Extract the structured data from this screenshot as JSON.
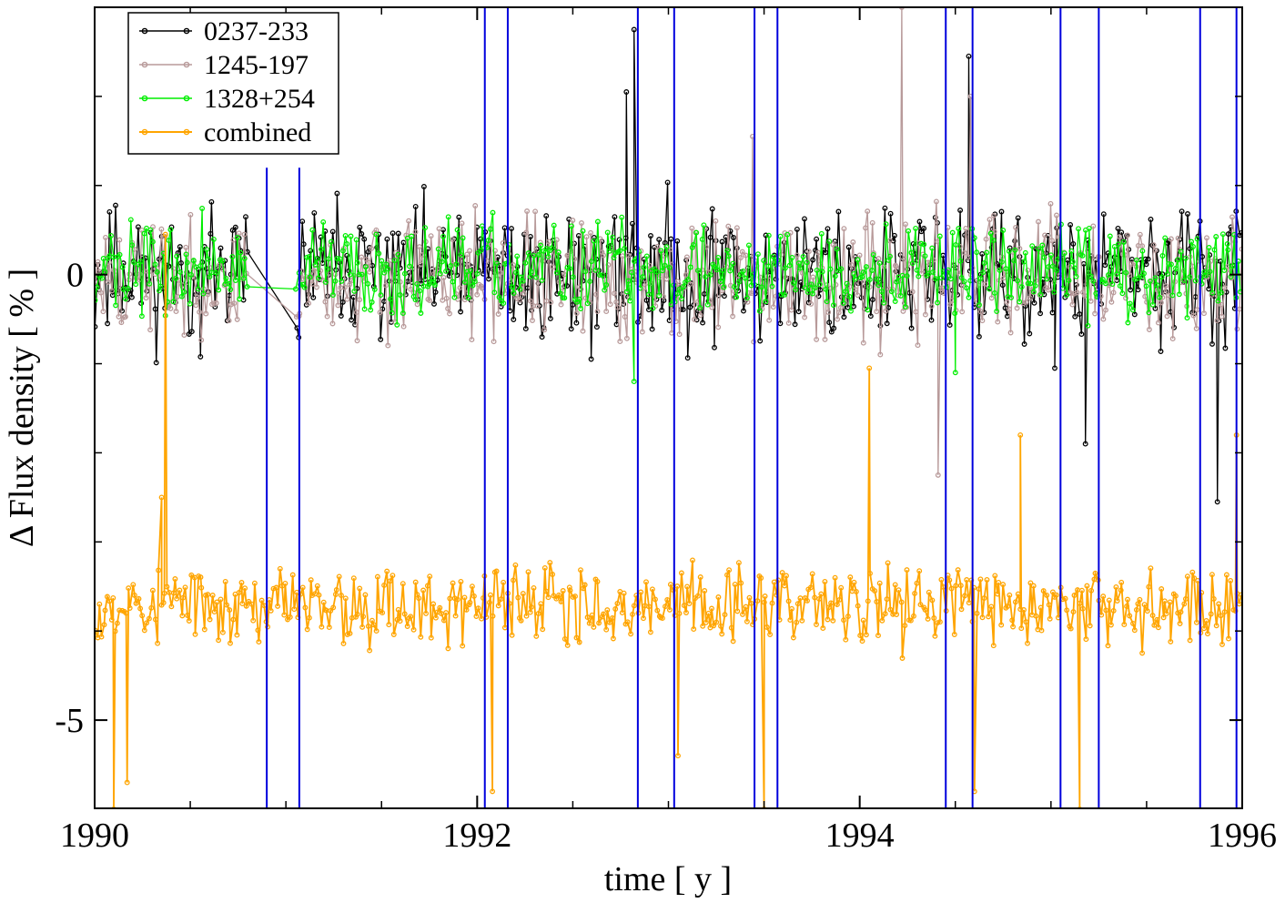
{
  "chart_data": {
    "type": "line",
    "title": "",
    "xlabel": "time [ y ]",
    "ylabel": "Δ Flux density [ % ]",
    "xlim": [
      1990,
      1996
    ],
    "ylim": [
      -5.99,
      3.0
    ],
    "x_ticks": [
      {
        "value": 1990,
        "label": "1990"
      },
      {
        "value": 1992,
        "label": "1992"
      },
      {
        "value": 1994,
        "label": "1994"
      },
      {
        "value": 1996,
        "label": "1996"
      }
    ],
    "x_minor_step": 0.5,
    "y_ticks": [
      {
        "value": 0,
        "label": "0"
      },
      {
        "value": -5,
        "label": "-5"
      }
    ],
    "y_minor_ticks": [
      2,
      1,
      -1,
      -2,
      -3,
      -4
    ],
    "grid": false,
    "legend_position": "top-left",
    "series": [
      {
        "name": "0237-233",
        "color": "#000000",
        "mean": 0.0,
        "amplitude": 1.1,
        "seed": 11,
        "spikes": [
          [
            1992.82,
            2.75
          ],
          [
            1992.78,
            2.05
          ],
          [
            1994.57,
            2.45
          ],
          [
            1995.02,
            -1.05
          ],
          [
            1995.18,
            -1.9
          ],
          [
            1995.87,
            -2.55
          ]
        ]
      },
      {
        "name": "1245-197",
        "color": "#B89A9A",
        "mean": -0.05,
        "amplitude": 1.0,
        "seed": 23,
        "spikes": [
          [
            1994.22,
            3.0
          ],
          [
            1994.58,
            2.0
          ],
          [
            1993.44,
            1.55
          ],
          [
            1994.41,
            -2.25
          ]
        ]
      },
      {
        "name": "1328+254",
        "color": "#00EE00",
        "mean": 0.05,
        "amplitude": 0.75,
        "seed": 37,
        "spikes": [
          [
            1992.82,
            -1.2
          ],
          [
            1994.5,
            -1.1
          ]
        ]
      },
      {
        "name": "combined",
        "color": "#FFA500",
        "mean": -3.7,
        "amplitude": 0.65,
        "seed": 53,
        "spikes": [
          [
            1990.37,
            0.45
          ],
          [
            1990.35,
            -2.5
          ],
          [
            1990.17,
            -5.7
          ],
          [
            1990.1,
            -6.0
          ],
          [
            1994.05,
            -1.05
          ],
          [
            1994.84,
            -1.8
          ],
          [
            1995.97,
            -1.8
          ],
          [
            1992.08,
            -5.8
          ],
          [
            1993.05,
            -5.4
          ],
          [
            1995.15,
            -6.0
          ],
          [
            1993.5,
            -6.0
          ],
          [
            1994.6,
            -5.8
          ]
        ]
      }
    ],
    "vertical_lines": {
      "color": "#0000DD",
      "positions": [
        1990.9,
        1991.07,
        1992.04,
        1992.16,
        1992.84,
        1993.03,
        1993.45,
        1993.57,
        1994.45,
        1994.59,
        1995.05,
        1995.25,
        1995.78,
        1995.97
      ],
      "tops": [
        1.2,
        1.2,
        3.0,
        3.0,
        3.0,
        3.0,
        3.0,
        3.0,
        3.0,
        3.0,
        3.0,
        3.0,
        3.0,
        3.0
      ]
    },
    "gaps": [
      [
        1990.8,
        1991.05
      ]
    ]
  }
}
